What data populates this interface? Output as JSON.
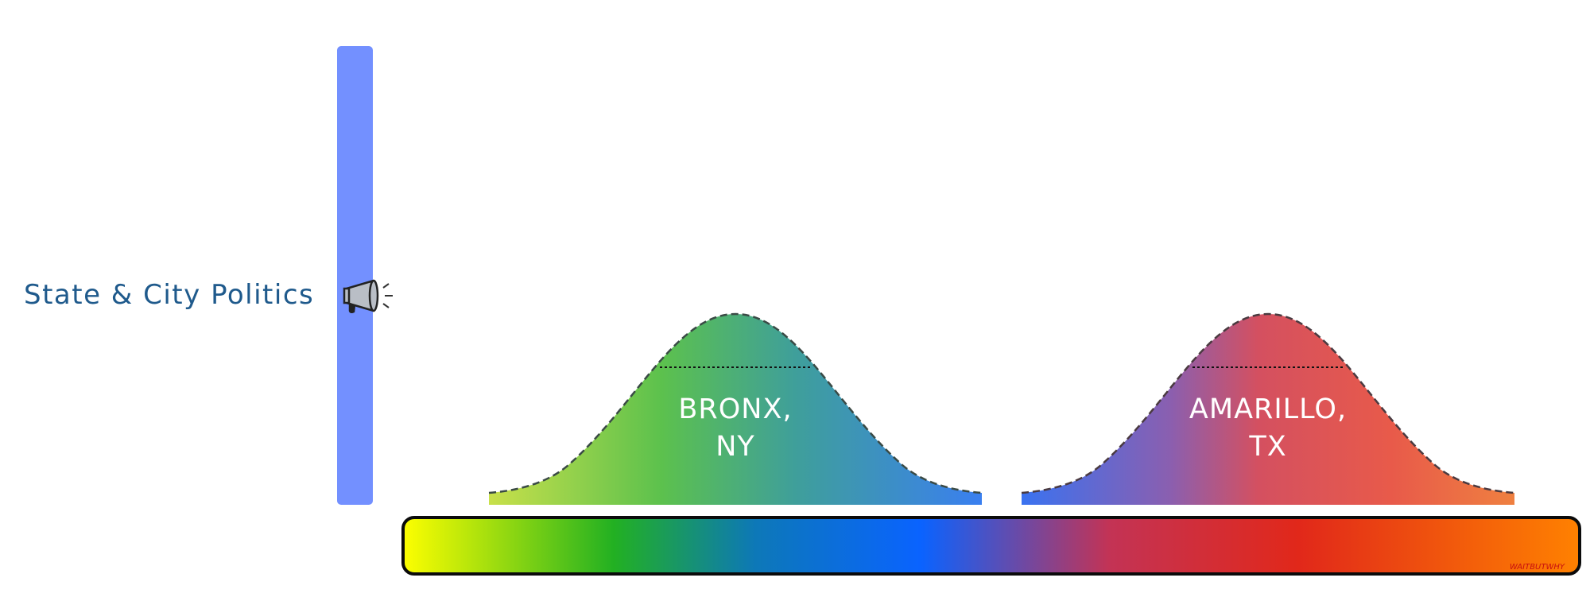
{
  "left_label": "State & City Politics",
  "megaphone_icon": "megaphone-icon",
  "curves": [
    {
      "line1": "BRONX,",
      "line2": "NY"
    },
    {
      "line1": "AMARILLO,",
      "line2": "TX"
    }
  ],
  "watermark": "WAITBUTWHY",
  "colors": {
    "label": "#1f5a8c",
    "vertical_bar": "#7390ff",
    "spectrum": [
      "#ffff00",
      "#22b022",
      "#0a63ff",
      "#e1281a",
      "#ff8200"
    ]
  }
}
